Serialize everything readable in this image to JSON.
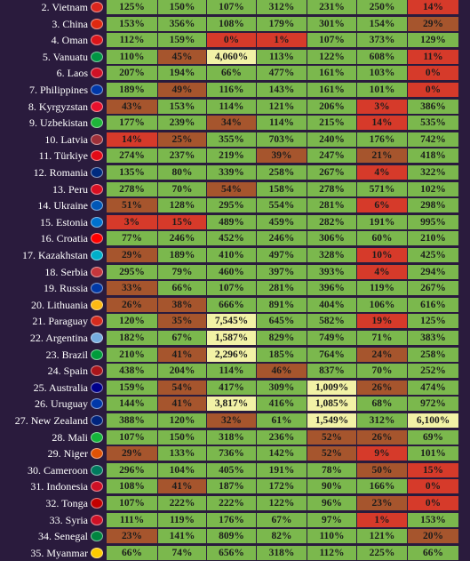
{
  "chart_data": {
    "type": "heatmap",
    "title": "",
    "columns": [
      "",
      "",
      "",
      "",
      "",
      "",
      ""
    ],
    "rows": [
      {
        "label": "2. Vietnam",
        "values": [
          "125%",
          "150%",
          "107%",
          "312%",
          "231%",
          "250%",
          "14%"
        ]
      },
      {
        "label": "3. China",
        "values": [
          "153%",
          "356%",
          "108%",
          "179%",
          "301%",
          "154%",
          "29%"
        ]
      },
      {
        "label": "4. Oman",
        "values": [
          "112%",
          "159%",
          "0%",
          "1%",
          "107%",
          "373%",
          "129%"
        ]
      },
      {
        "label": "5. Vanuatu",
        "values": [
          "110%",
          "45%",
          "4,060%",
          "113%",
          "122%",
          "608%",
          "11%"
        ]
      },
      {
        "label": "6. Laos",
        "values": [
          "207%",
          "194%",
          "66%",
          "477%",
          "161%",
          "103%",
          "0%"
        ]
      },
      {
        "label": "7. Philippines",
        "values": [
          "189%",
          "49%",
          "116%",
          "143%",
          "161%",
          "101%",
          "0%"
        ]
      },
      {
        "label": "8. Kyrgyzstan",
        "values": [
          "43%",
          "153%",
          "114%",
          "121%",
          "206%",
          "3%",
          "386%"
        ]
      },
      {
        "label": "9. Uzbekistan",
        "values": [
          "177%",
          "239%",
          "34%",
          "114%",
          "215%",
          "14%",
          "535%"
        ]
      },
      {
        "label": "10. Latvia",
        "values": [
          "14%",
          "25%",
          "355%",
          "703%",
          "240%",
          "176%",
          "742%"
        ]
      },
      {
        "label": "11. Türkiye",
        "values": [
          "274%",
          "237%",
          "219%",
          "39%",
          "247%",
          "21%",
          "418%"
        ]
      },
      {
        "label": "12. Romania",
        "values": [
          "135%",
          "80%",
          "339%",
          "258%",
          "267%",
          "4%",
          "322%"
        ]
      },
      {
        "label": "13. Peru",
        "values": [
          "278%",
          "70%",
          "54%",
          "158%",
          "278%",
          "571%",
          "102%"
        ]
      },
      {
        "label": "14. Ukraine",
        "values": [
          "51%",
          "128%",
          "295%",
          "554%",
          "281%",
          "6%",
          "298%"
        ]
      },
      {
        "label": "15. Estonia",
        "values": [
          "3%",
          "15%",
          "489%",
          "459%",
          "282%",
          "191%",
          "995%"
        ]
      },
      {
        "label": "16. Croatia",
        "values": [
          "77%",
          "246%",
          "452%",
          "246%",
          "306%",
          "60%",
          "210%"
        ]
      },
      {
        "label": "17. Kazakhstan",
        "values": [
          "29%",
          "189%",
          "410%",
          "497%",
          "328%",
          "10%",
          "425%"
        ]
      },
      {
        "label": "18. Serbia",
        "values": [
          "295%",
          "79%",
          "460%",
          "397%",
          "393%",
          "4%",
          "294%"
        ]
      },
      {
        "label": "19. Russia",
        "values": [
          "33%",
          "66%",
          "107%",
          "281%",
          "396%",
          "119%",
          "267%"
        ]
      },
      {
        "label": "20. Lithuania",
        "values": [
          "26%",
          "38%",
          "666%",
          "891%",
          "404%",
          "106%",
          "616%"
        ]
      },
      {
        "label": "21. Paraguay",
        "values": [
          "120%",
          "35%",
          "7,545%",
          "645%",
          "582%",
          "19%",
          "125%"
        ]
      },
      {
        "label": "22. Argentina",
        "values": [
          "182%",
          "67%",
          "1,587%",
          "829%",
          "749%",
          "71%",
          "383%"
        ]
      },
      {
        "label": "23. Brazil",
        "values": [
          "210%",
          "41%",
          "2,296%",
          "185%",
          "764%",
          "24%",
          "258%"
        ]
      },
      {
        "label": "24. Spain",
        "values": [
          "438%",
          "204%",
          "114%",
          "46%",
          "837%",
          "70%",
          "252%"
        ]
      },
      {
        "label": "25. Australia",
        "values": [
          "159%",
          "54%",
          "417%",
          "309%",
          "1,009%",
          "26%",
          "474%"
        ]
      },
      {
        "label": "26. Uruguay",
        "values": [
          "144%",
          "41%",
          "3,817%",
          "416%",
          "1,085%",
          "68%",
          "972%"
        ]
      },
      {
        "label": "27. New Zealand",
        "values": [
          "388%",
          "120%",
          "32%",
          "61%",
          "1,549%",
          "312%",
          "6,100%"
        ]
      },
      {
        "label": "28. Mali",
        "values": [
          "107%",
          "150%",
          "318%",
          "236%",
          "52%",
          "26%",
          "69%"
        ]
      },
      {
        "label": "29. Niger",
        "values": [
          "29%",
          "133%",
          "736%",
          "142%",
          "52%",
          "9%",
          "101%"
        ]
      },
      {
        "label": "30. Cameroon",
        "values": [
          "296%",
          "104%",
          "405%",
          "191%",
          "78%",
          "50%",
          "15%"
        ]
      },
      {
        "label": "31. Indonesia",
        "values": [
          "108%",
          "41%",
          "187%",
          "172%",
          "90%",
          "166%",
          "0%"
        ]
      },
      {
        "label": "32. Tonga",
        "values": [
          "107%",
          "222%",
          "222%",
          "122%",
          "96%",
          "23%",
          "0%"
        ]
      },
      {
        "label": "33. Syria",
        "values": [
          "111%",
          "119%",
          "176%",
          "67%",
          "97%",
          "1%",
          "153%"
        ]
      },
      {
        "label": "34. Senegal",
        "values": [
          "23%",
          "141%",
          "809%",
          "82%",
          "110%",
          "121%",
          "20%"
        ]
      },
      {
        "label": "35. Myanmar",
        "values": [
          "66%",
          "74%",
          "656%",
          "318%",
          "112%",
          "225%",
          "66%"
        ]
      }
    ],
    "flag_colors": [
      "#da251d",
      "#de2910",
      "#db161b",
      "#009543",
      "#ce1126",
      "#0038a8",
      "#e8112d",
      "#1eb53a",
      "#9e3039",
      "#e30a17",
      "#002b7f",
      "#d91023",
      "#0057b7",
      "#0072ce",
      "#ff0000",
      "#00afca",
      "#c6363c",
      "#0039a6",
      "#fdb913",
      "#d52b1e",
      "#74acdf",
      "#009c3b",
      "#aa151b",
      "#00008b",
      "#0038a8",
      "#00247d",
      "#14b53a",
      "#e05206",
      "#007a5e",
      "#ce1126",
      "#c10000",
      "#ce1126",
      "#00853f",
      "#fecb00"
    ],
    "color_scale": {
      "very_low": "#d63a2a",
      "low": "#a6552d",
      "mid": "#7bb84d",
      "high": "#5faa42",
      "very_high": "#f2f2a6"
    }
  }
}
